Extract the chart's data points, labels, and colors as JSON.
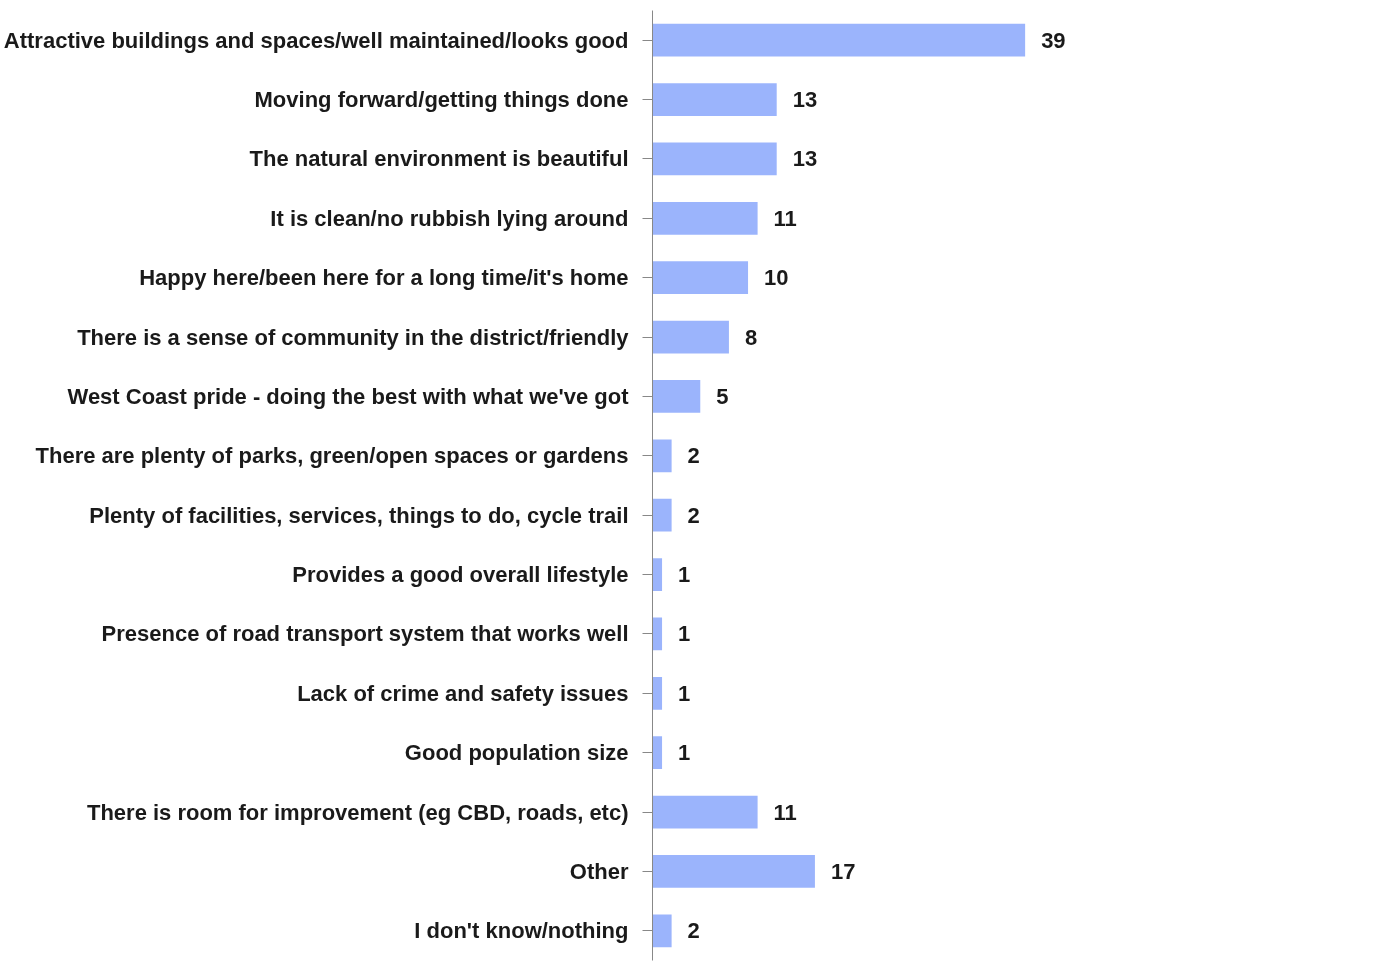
{
  "chart_data": {
    "type": "bar",
    "orientation": "horizontal",
    "data_labels": true,
    "grid": false,
    "categories": [
      "Attractive buildings and spaces/well maintained/looks good",
      "Moving forward/getting things done",
      "The natural environment is beautiful",
      "It is clean/no rubbish lying around",
      "Happy here/been here for a long time/it's home",
      "There is a sense of community in the district/friendly",
      "West Coast pride - doing the best with what we've got",
      "There are plenty of parks, green/open spaces or gardens",
      "Plenty of facilities, services, things to do, cycle trail",
      "Provides a good overall lifestyle",
      "Presence of road transport system that works well",
      "Lack of crime and safety issues",
      "Good population size",
      "There is room for improvement (eg CBD, roads, etc)",
      "Other",
      "I don't know/nothing"
    ],
    "values": [
      39,
      13,
      13,
      11,
      10,
      8,
      5,
      2,
      2,
      1,
      1,
      1,
      1,
      11,
      17,
      2
    ],
    "color": "#9bb4fc"
  }
}
